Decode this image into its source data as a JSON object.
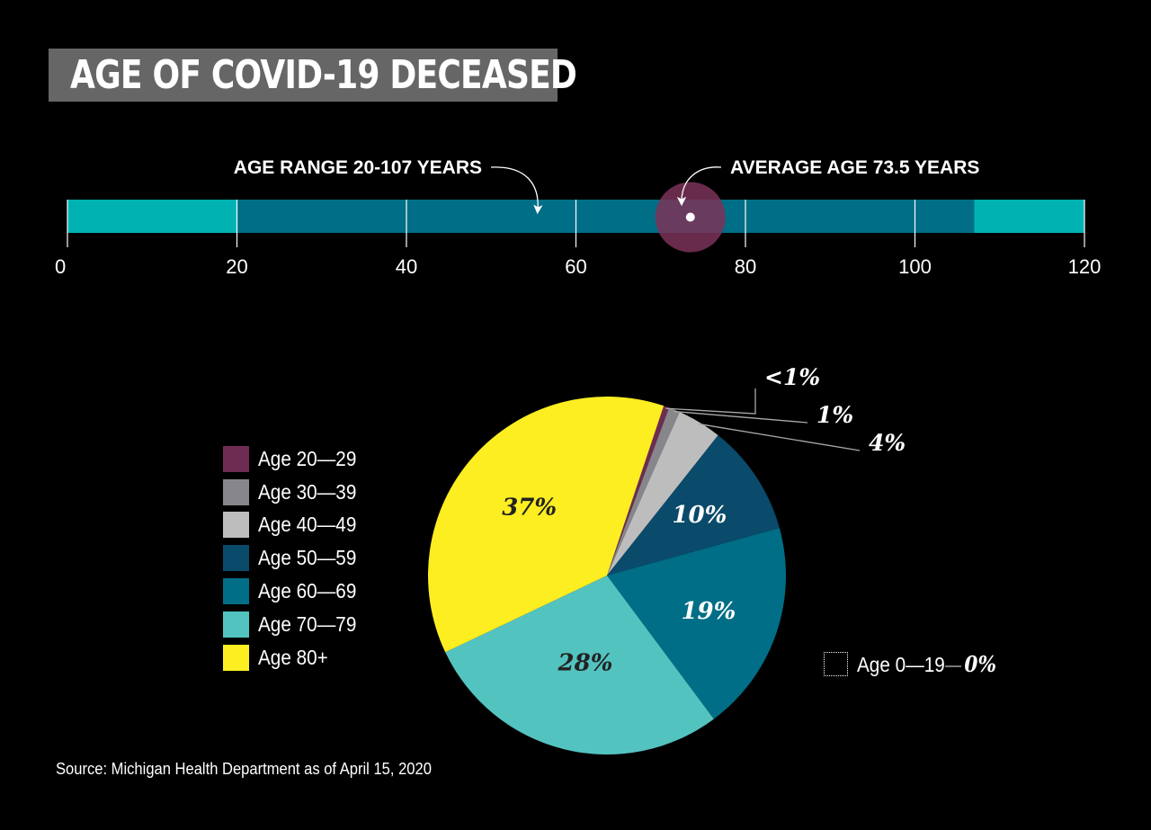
{
  "title": "AGE OF COVID-19 DECEASED",
  "source": "Source: Michigan Health Department as of April 15, 2020",
  "colors": {
    "background": "#000000",
    "title_bg": "#666666",
    "bar_full": "#00b2b2",
    "bar_range": "#006e86",
    "avg_marker": "#7a3358"
  },
  "chart_data": [
    {
      "type": "bar",
      "subtype": "range-bar",
      "annotations": {
        "range_label": "AGE RANGE 20-107 YEARS",
        "average_label": "AVERAGE AGE 73.5 YEARS"
      },
      "xlim": [
        0,
        120
      ],
      "ticks": [
        0,
        20,
        40,
        60,
        80,
        100,
        120
      ],
      "tick_labels": [
        "0",
        "20",
        "40",
        "60",
        "80",
        "100",
        "120"
      ],
      "range": [
        20,
        107
      ],
      "average": 73.5
    },
    {
      "type": "pie",
      "slices": [
        {
          "label": "Age 20—29",
          "value": 0.5,
          "display": "<1%",
          "color": "#6e2c52"
        },
        {
          "label": "Age 30—39",
          "value": 1,
          "display": "1%",
          "color": "#86868b"
        },
        {
          "label": "Age 40—49",
          "value": 4,
          "display": "4%",
          "color": "#bdbdbd"
        },
        {
          "label": "Age 50—59",
          "value": 10,
          "display": "10%",
          "color": "#0a4a6b"
        },
        {
          "label": "Age 60—69",
          "value": 19,
          "display": "19%",
          "color": "#006e86"
        },
        {
          "label": "Age 70—79",
          "value": 28,
          "display": "28%",
          "color": "#53c3c0"
        },
        {
          "label": "Age 80+",
          "value": 37,
          "display": "37%",
          "color": "#fdee21"
        }
      ],
      "zero_note": {
        "label": "Age 0—19",
        "value": "0%"
      }
    }
  ]
}
